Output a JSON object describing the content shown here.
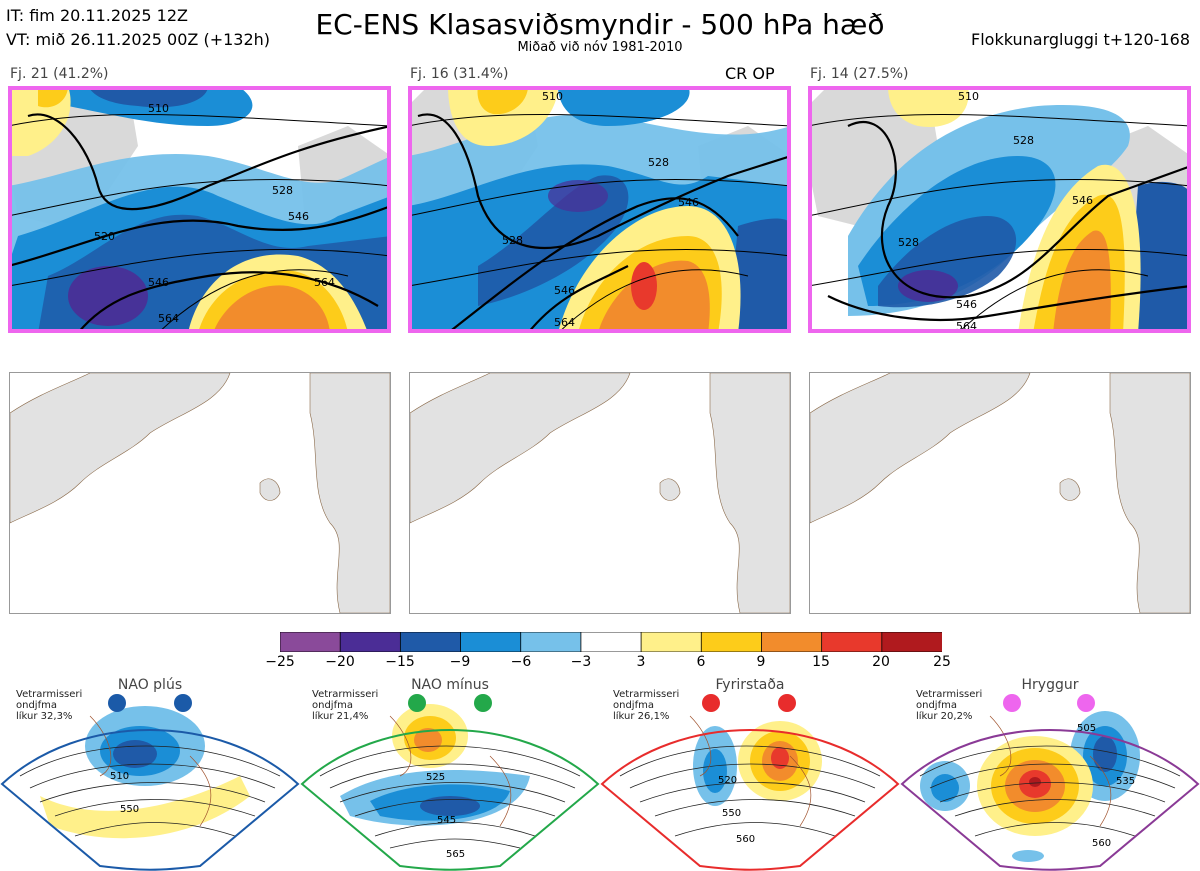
{
  "header": {
    "it_line": "IT: fim 20.11.2025 12Z",
    "vt_line": "VT: mið 26.11.2025 00Z  (+132h)",
    "title": "EC-ENS Klasasviðsmyndir - 500 hPa hæð",
    "subtitle": "Miðað við nóv 1981-2010",
    "window": "Flokkunargluggi t+120-168"
  },
  "clusters": [
    {
      "label": "Fj. 21 (41.2%)",
      "contours": [
        "510",
        "528",
        "520",
        "546",
        "546",
        "564",
        "564"
      ],
      "border_color": "#ee66ee"
    },
    {
      "label": "Fj. 16 (31.4%)",
      "extra": "CR OP",
      "contours": [
        "510",
        "528",
        "528",
        "546",
        "546",
        "564"
      ],
      "border_color": "#ee66ee"
    },
    {
      "label": "Fj. 14 (27.5%)",
      "contours": [
        "510",
        "528",
        "528",
        "546",
        "546",
        "564"
      ],
      "border_color": "#ee66ee"
    }
  ],
  "colorbar": {
    "ticks": [
      "−25",
      "−20",
      "−15",
      "−9",
      "−6",
      "−3",
      "3",
      "6",
      "9",
      "15",
      "20",
      "25"
    ],
    "colors": [
      "#8a4a9a",
      "#4b2d96",
      "#1f5aa8",
      "#1b8ed6",
      "#76c1ea",
      "#ffffff",
      "#fff08a",
      "#fdcc1a",
      "#f28c2c",
      "#e8392c",
      "#b01a1e"
    ]
  },
  "regimes": [
    {
      "name": "NAO plús",
      "season": "Vetrarmisseri",
      "sub": "ondjfma",
      "prob": "líkur 32,3%",
      "color": "#1b5aa8",
      "labels": [
        "510",
        "550"
      ]
    },
    {
      "name": "NAO mínus",
      "season": "Vetrarmisseri",
      "sub": "ondjfma",
      "prob": "líkur 21,4%",
      "color": "#23a84a",
      "labels": [
        "525",
        "545",
        "565"
      ]
    },
    {
      "name": "Fyrirstaða",
      "season": "Vetrarmisseri",
      "sub": "ondjfma",
      "prob": "líkur 26,1%",
      "color": "#e82c2c",
      "labels": [
        "520",
        "550",
        "560"
      ]
    },
    {
      "name": "Hryggur",
      "season": "Vetrarmisseri",
      "sub": "ondjfma",
      "prob": "líkur 20,2%",
      "color": "#8a3a96",
      "labels": [
        "505",
        "535",
        "560"
      ]
    }
  ]
}
